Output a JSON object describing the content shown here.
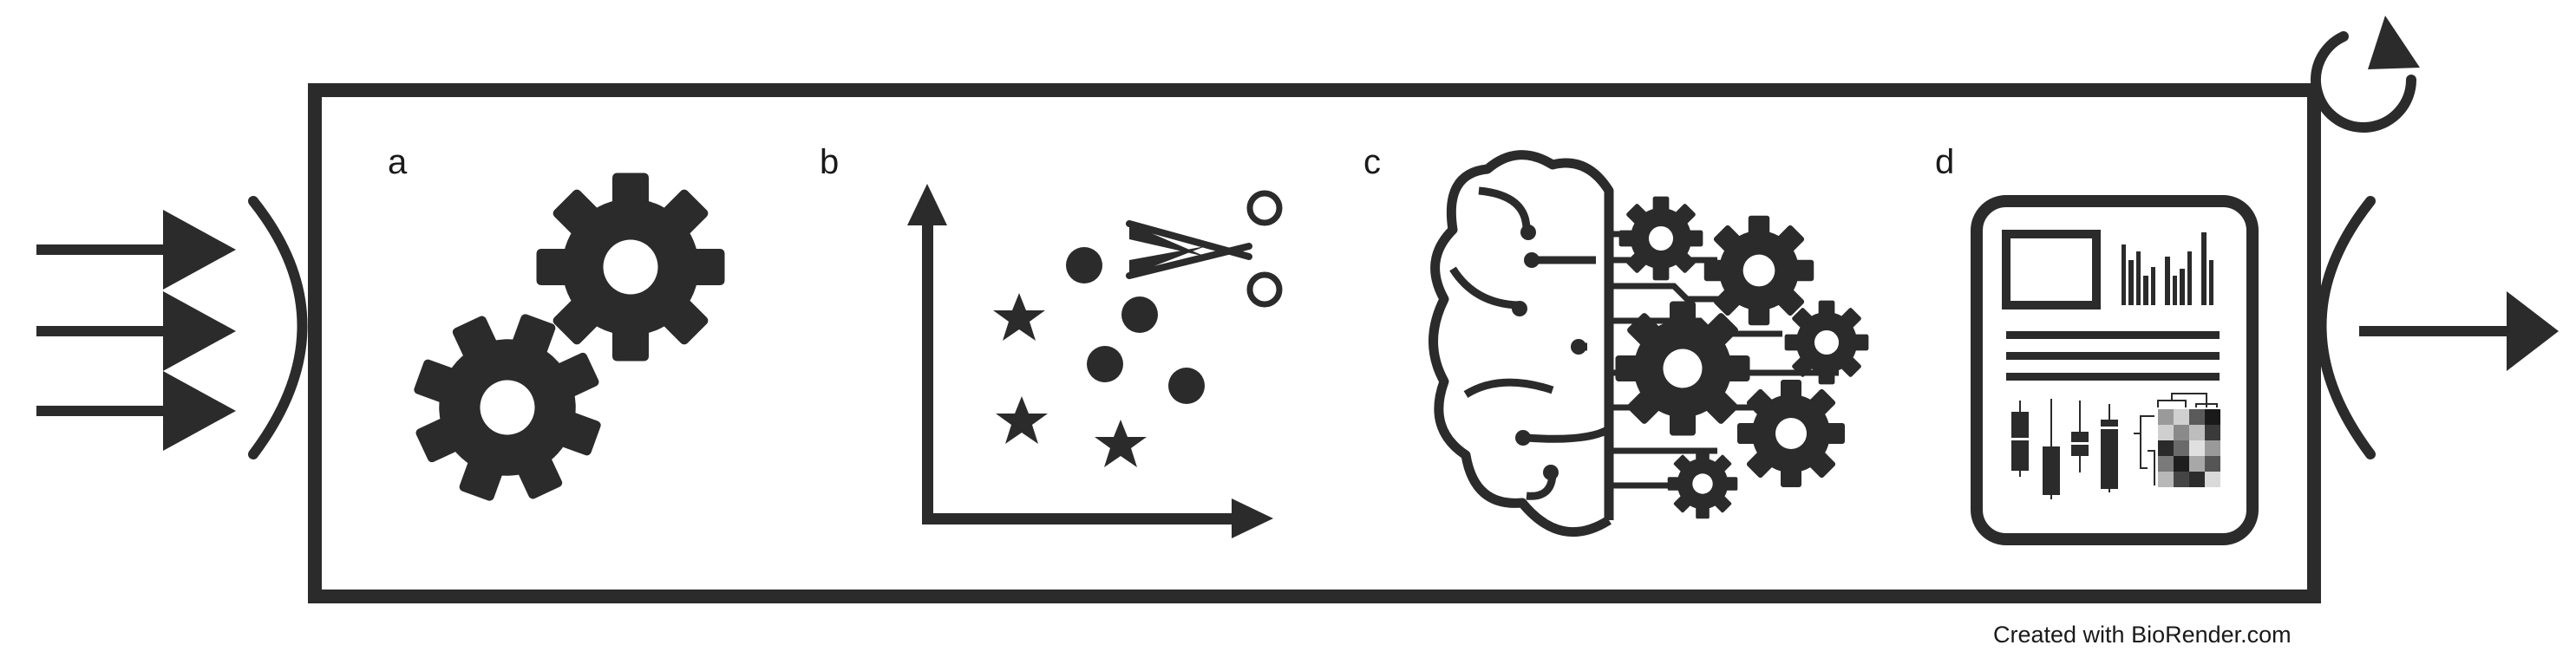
{
  "stages": [
    {
      "id": "a",
      "label": "a",
      "icon": "gears-icon"
    },
    {
      "id": "b",
      "label": "b",
      "icon": "scatter-clustering-icon"
    },
    {
      "id": "c",
      "label": "c",
      "icon": "brain-gears-icon"
    },
    {
      "id": "d",
      "label": "d",
      "icon": "report-document-icon"
    }
  ],
  "credit": "Created with BioRender.com",
  "colors": {
    "ink": "#2b2b2b",
    "background": "#ffffff"
  }
}
